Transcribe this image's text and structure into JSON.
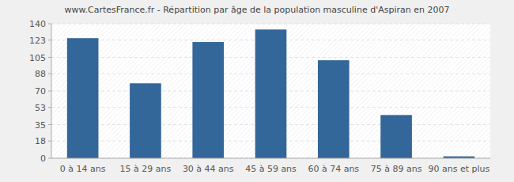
{
  "chart_data": {
    "type": "bar",
    "title": "www.CartesFrance.fr - Répartition par âge de la population masculine d'Aspiran en 2007",
    "categories": [
      "0 à 14 ans",
      "15 à 29 ans",
      "30 à 44 ans",
      "45 à 59 ans",
      "60 à 74 ans",
      "75 à 89 ans",
      "90 ans et plus"
    ],
    "values": [
      125,
      78,
      121,
      134,
      102,
      45,
      2
    ],
    "color": "#336699",
    "ylim": [
      0,
      140
    ],
    "yticks": [
      0,
      18,
      35,
      53,
      70,
      88,
      105,
      123,
      140
    ],
    "grid": true
  }
}
